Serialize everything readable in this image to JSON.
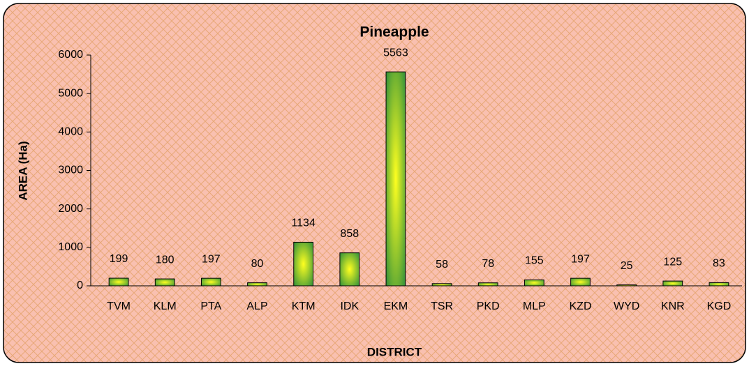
{
  "chart_data": {
    "type": "bar",
    "title": "Pineapple",
    "x_label": "DISTRICT",
    "y_label": "AREA (Ha)",
    "categories": [
      "TVM",
      "KLM",
      "PTA",
      "ALP",
      "KTM",
      "IDK",
      "EKM",
      "TSR",
      "PKD",
      "MLP",
      "KZD",
      "WYD",
      "KNR",
      "KGD"
    ],
    "values": [
      199,
      180,
      197,
      80,
      1134,
      858,
      5563,
      58,
      78,
      155,
      197,
      25,
      125,
      83
    ],
    "color": "#2f8f3a",
    "highlight": "#ffff20",
    "ylim": [
      0,
      6000
    ],
    "yticks": [
      0,
      1000,
      2000,
      3000,
      4000,
      5000,
      6000
    ],
    "grid": false,
    "data_labels": true
  }
}
